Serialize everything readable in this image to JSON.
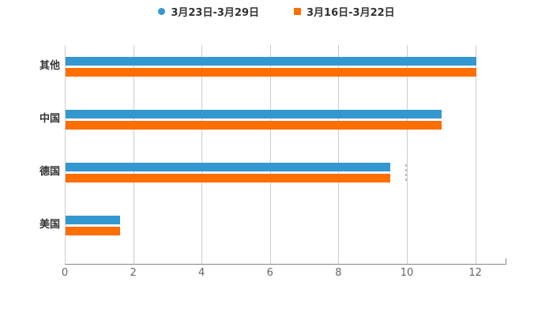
{
  "chart_data": {
    "type": "bar",
    "orientation": "horizontal",
    "title": "",
    "xlabel": "",
    "ylabel": "",
    "categories": [
      "其他",
      "中国",
      "德国",
      "美国"
    ],
    "series": [
      {
        "name": "3月23日-3月29日",
        "color": "#3398D0",
        "marker": "circle",
        "values": [
          12,
          11,
          9.5,
          1.6
        ]
      },
      {
        "name": "3月16日-3月22日",
        "color": "#FF6E00",
        "marker": "square",
        "values": [
          12,
          11,
          9.5,
          1.6
        ]
      }
    ],
    "xlim": [
      0,
      13
    ],
    "xticks": [
      0,
      2,
      4,
      6,
      8,
      10,
      12
    ],
    "grid": true,
    "legend_position": "top",
    "colors": {
      "background": "#ffffff",
      "grid_line": "#cccccc",
      "axis_line": "#888888",
      "tick_text": "#666666",
      "category_text": "#333333",
      "legend_text": "#333333"
    }
  }
}
